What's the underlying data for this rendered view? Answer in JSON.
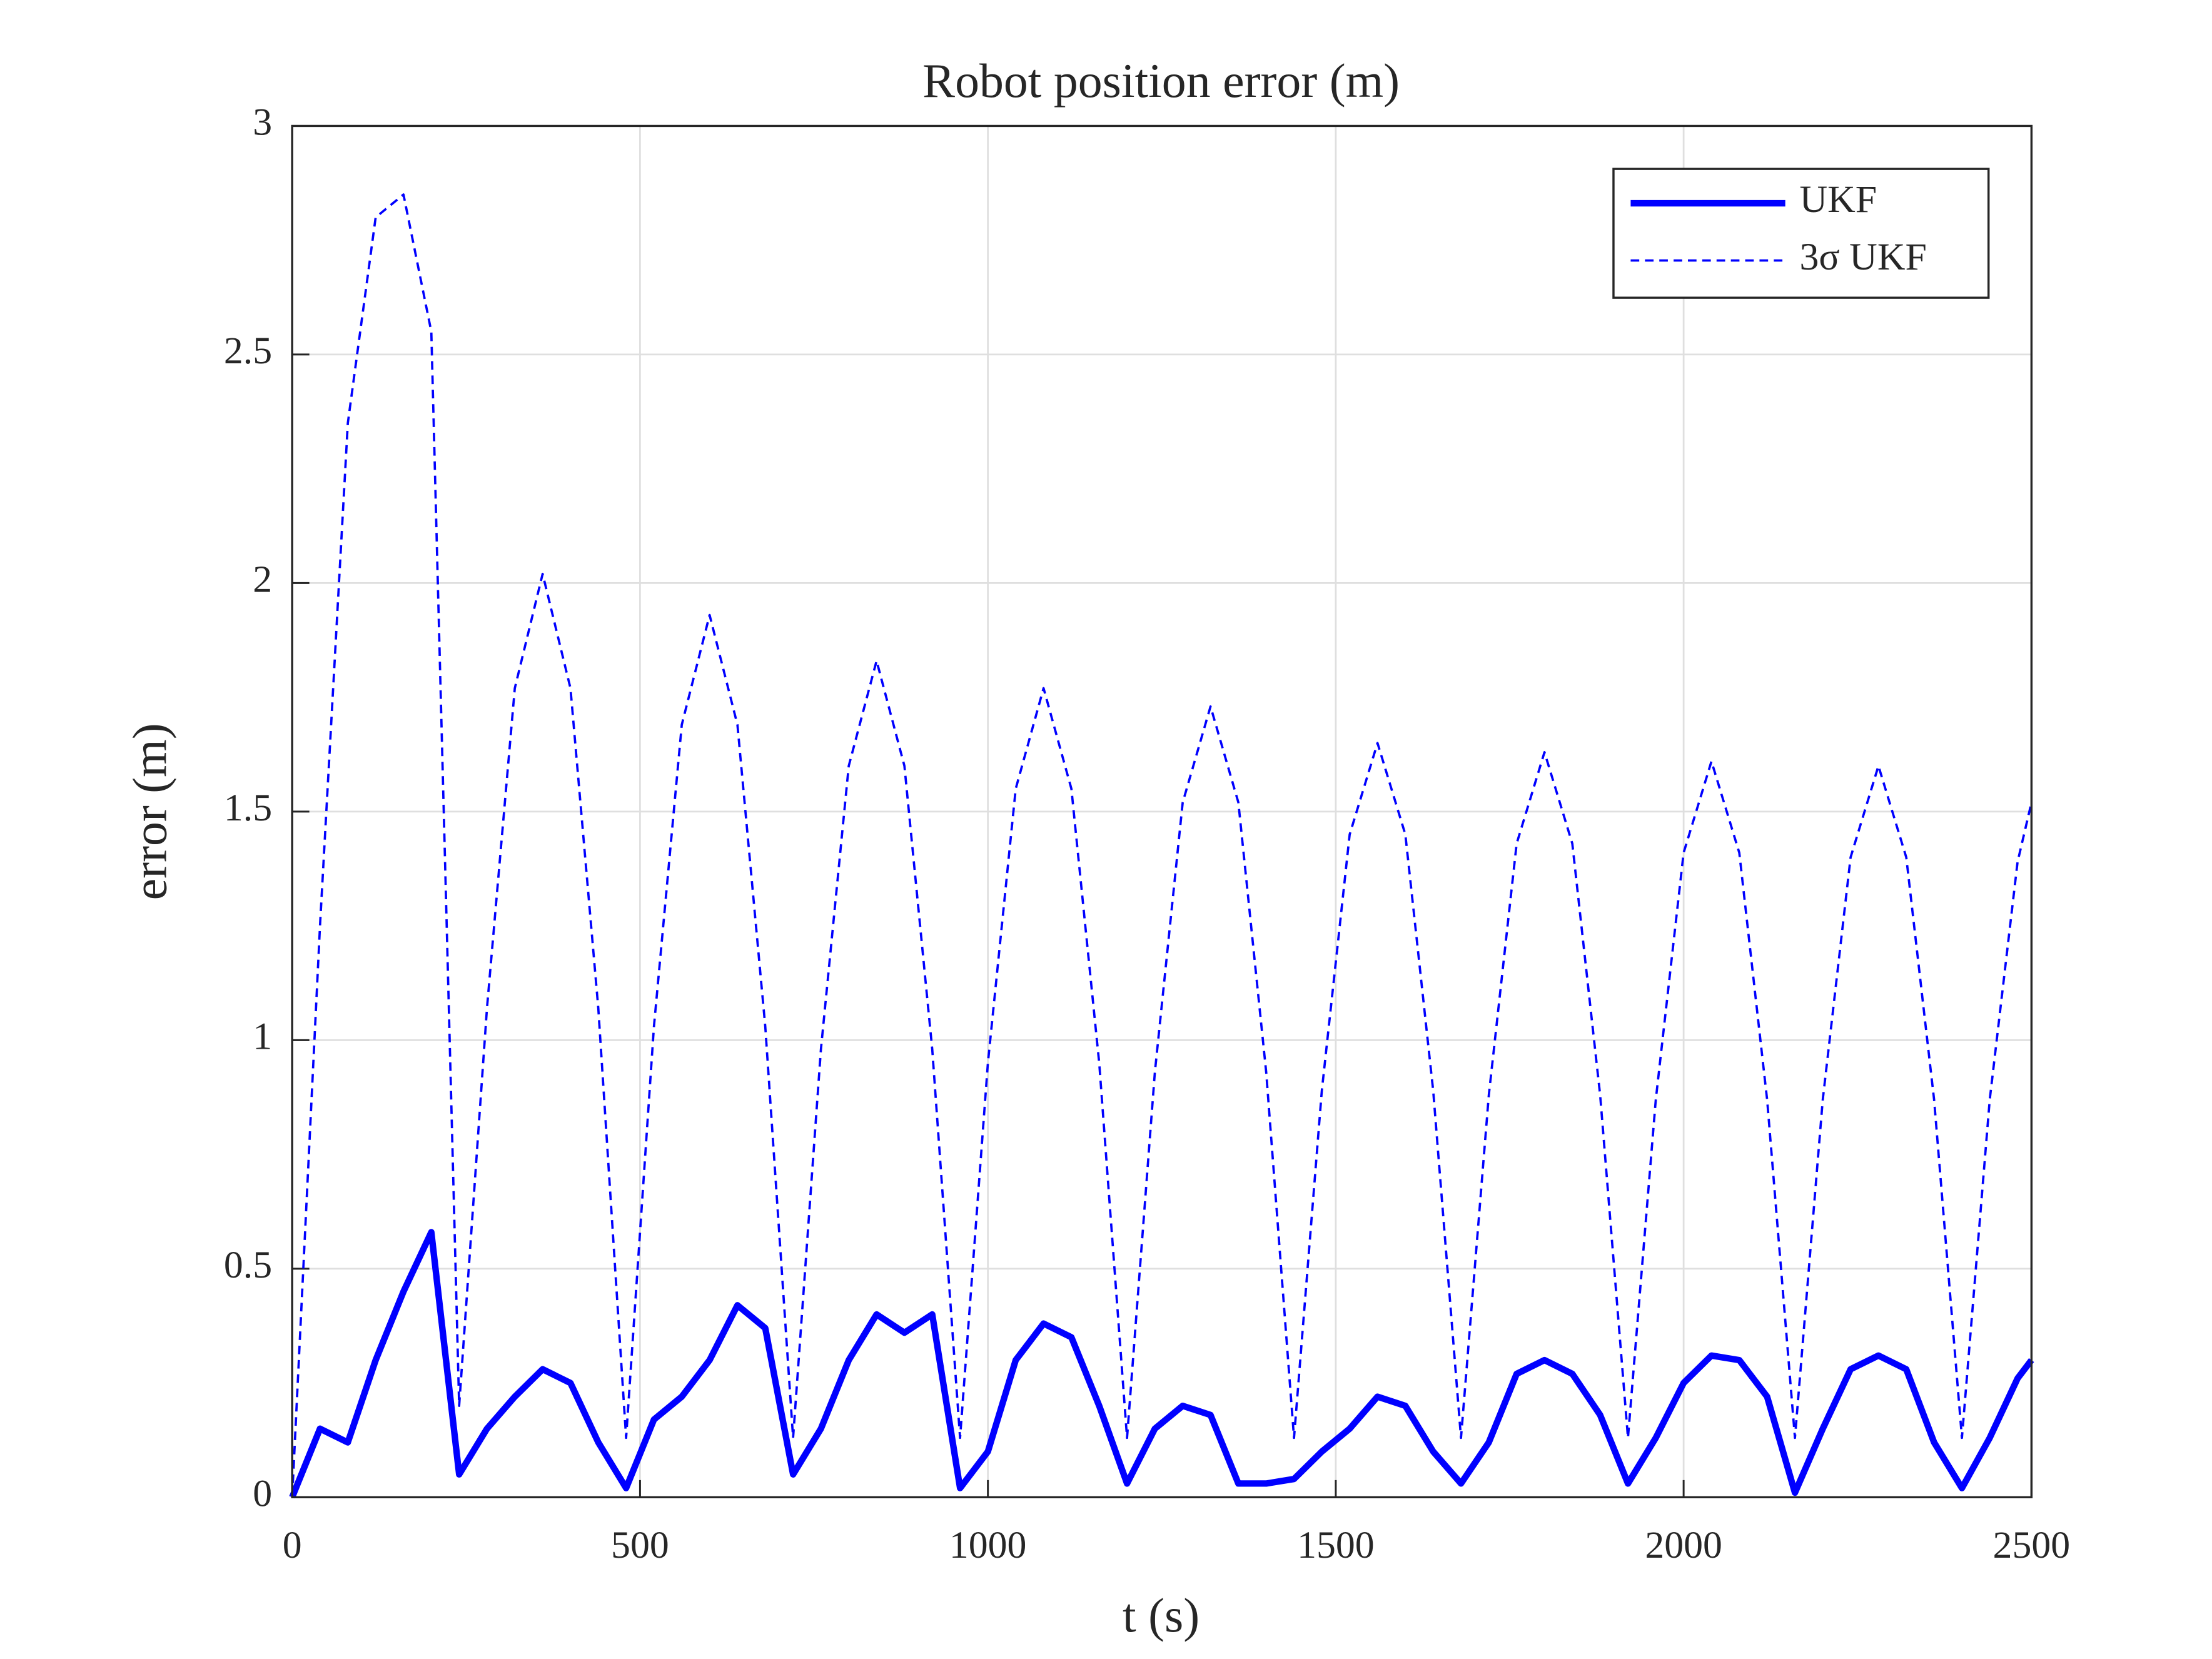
{
  "chart_data": {
    "type": "line",
    "title": "Robot position error (m)",
    "x_label": "t (s)",
    "y_label": "error (m)",
    "x": [
      0,
      40,
      80,
      120,
      160,
      200,
      240,
      280,
      320,
      360,
      400,
      440,
      480,
      520,
      560,
      600,
      640,
      680,
      720,
      760,
      800,
      840,
      880,
      920,
      960,
      1000,
      1040,
      1080,
      1120,
      1160,
      1200,
      1240,
      1280,
      1320,
      1360,
      1400,
      1440,
      1480,
      1520,
      1560,
      1600,
      1640,
      1680,
      1720,
      1760,
      1800,
      1840,
      1880,
      1920,
      1960,
      2000,
      2040,
      2080,
      2120,
      2160,
      2200,
      2240,
      2280,
      2320,
      2360,
      2400,
      2440,
      2480,
      2500
    ],
    "series": [
      {
        "name": "UKF",
        "color": "#0000ff",
        "style": "solid",
        "values": [
          0,
          0.15,
          0.12,
          0.3,
          0.45,
          0.58,
          0.05,
          0.15,
          0.22,
          0.28,
          0.25,
          0.12,
          0.02,
          0.17,
          0.22,
          0.3,
          0.42,
          0.37,
          0.05,
          0.15,
          0.3,
          0.4,
          0.36,
          0.4,
          0.02,
          0.1,
          0.3,
          0.38,
          0.35,
          0.2,
          0.03,
          0.15,
          0.2,
          0.18,
          0.03,
          0.03,
          0.04,
          0.1,
          0.15,
          0.22,
          0.2,
          0.1,
          0.03,
          0.12,
          0.27,
          0.3,
          0.27,
          0.18,
          0.03,
          0.13,
          0.25,
          0.31,
          0.3,
          0.22,
          0.01,
          0.15,
          0.28,
          0.31,
          0.28,
          0.12,
          0.02,
          0.13,
          0.26,
          0.3
        ]
      },
      {
        "name": "3σ UKF",
        "color": "#0000ff",
        "style": "dashed",
        "values": [
          0,
          1.25,
          2.35,
          2.8,
          2.85,
          2.55,
          0.2,
          1.07,
          1.77,
          2.02,
          1.77,
          1.07,
          0.13,
          1.03,
          1.69,
          1.93,
          1.69,
          1.03,
          0.13,
          0.98,
          1.6,
          1.83,
          1.6,
          0.98,
          0.13,
          0.95,
          1.55,
          1.77,
          1.55,
          0.95,
          0.13,
          0.93,
          1.52,
          1.73,
          1.52,
          0.93,
          0.13,
          0.89,
          1.45,
          1.65,
          1.45,
          0.89,
          0.13,
          0.88,
          1.43,
          1.63,
          1.43,
          0.88,
          0.13,
          0.87,
          1.41,
          1.61,
          1.41,
          0.87,
          0.13,
          0.87,
          1.4,
          1.6,
          1.4,
          0.87,
          0.13,
          0.87,
          1.39,
          1.52
        ]
      }
    ],
    "xlim": [
      0,
      2500
    ],
    "xticks": [
      0,
      500,
      1000,
      1500,
      2000,
      2500
    ],
    "ylim": [
      0,
      3
    ],
    "yticks": [
      0,
      0.5,
      1,
      1.5,
      2,
      2.5,
      3
    ],
    "grid": true,
    "legend": "upper right"
  }
}
